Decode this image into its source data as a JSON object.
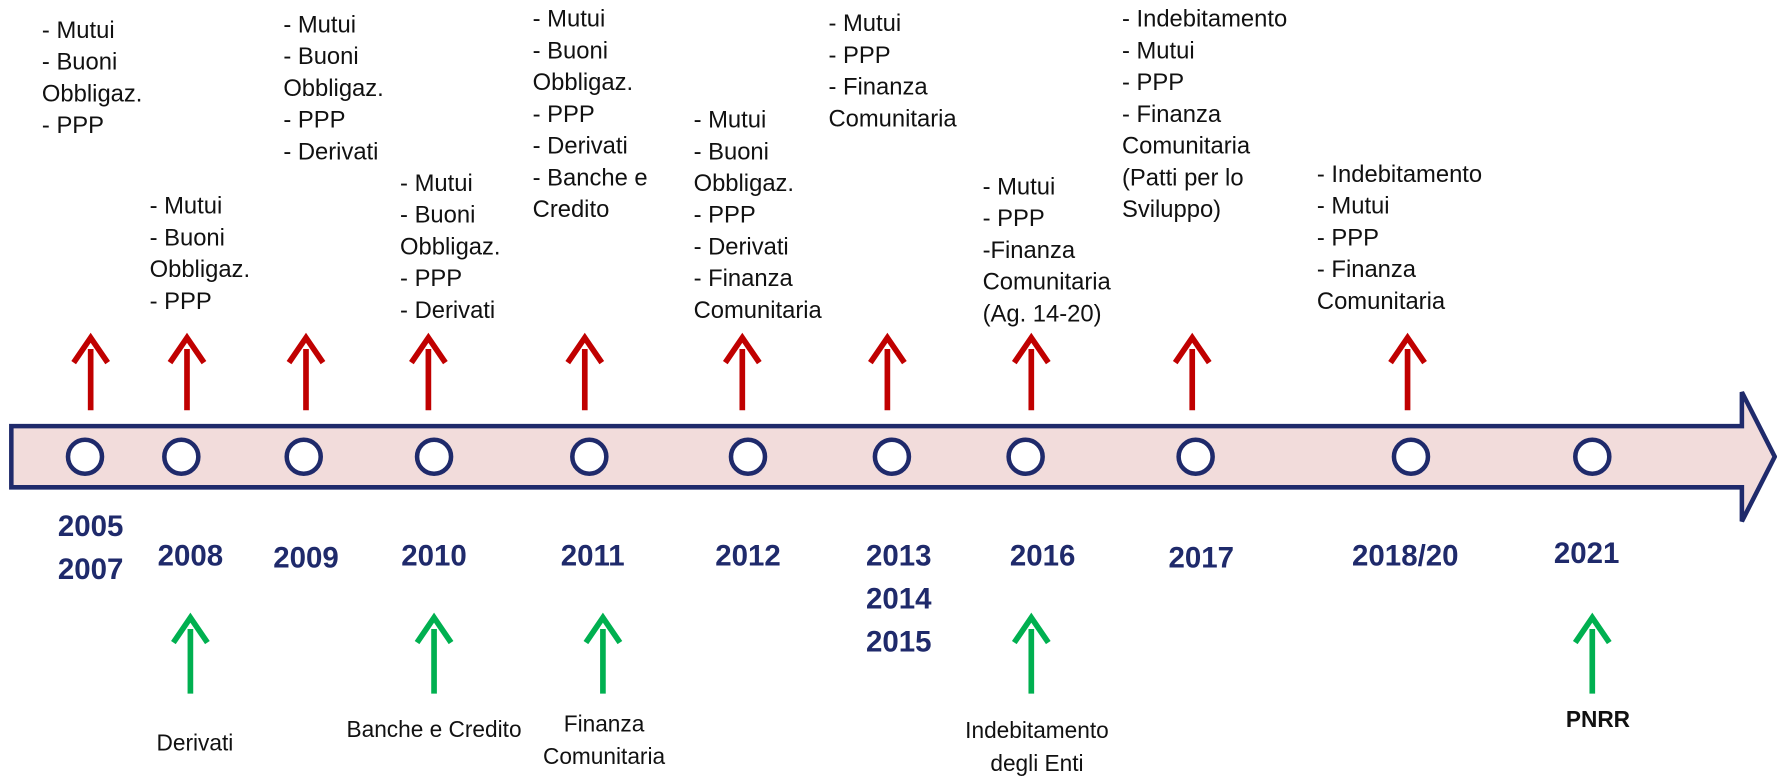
{
  "milestones": [
    {
      "year": [
        "2005",
        "2007"
      ],
      "items": [
        "- Mutui",
        "- Buoni",
        "Obbligaz.",
        "- PPP"
      ]
    },
    {
      "year": [
        "2008"
      ],
      "items": [
        "- Mutui",
        "- Buoni",
        "Obbligaz.",
        "- PPP"
      ],
      "note": [
        "Derivati"
      ]
    },
    {
      "year": [
        "2009"
      ],
      "items": [
        "- Mutui",
        "- Buoni",
        "Obbligaz.",
        "- PPP",
        "- Derivati"
      ]
    },
    {
      "year": [
        "2010"
      ],
      "items": [
        "- Mutui",
        "- Buoni",
        "Obbligaz.",
        "- PPP",
        "- Derivati"
      ],
      "note": [
        "Banche  e Credito"
      ]
    },
    {
      "year": [
        "2011"
      ],
      "items": [
        "- Mutui",
        "- Buoni",
        "Obbligaz.",
        "- PPP",
        "- Derivati",
        "- Banche e",
        "Credito"
      ],
      "note": [
        "Finanza",
        "Comunitaria"
      ]
    },
    {
      "year": [
        "2012"
      ],
      "items": [
        "- Mutui",
        "- Buoni",
        "Obbligaz.",
        "- PPP",
        "- Derivati",
        "- Finanza",
        "Comunitaria"
      ]
    },
    {
      "year": [
        "2013",
        "2014",
        "2015"
      ],
      "items": [
        "- Mutui",
        "- PPP",
        "- Finanza",
        "Comunitaria"
      ]
    },
    {
      "year": [
        "2016"
      ],
      "items": [
        "- Mutui",
        "- PPP",
        "-Finanza",
        "Comunitaria",
        "(Ag. 14-20)"
      ],
      "note": [
        "Indebitamento",
        "degli Enti"
      ]
    },
    {
      "year": [
        "2017"
      ],
      "items": [
        "- Indebitamento",
        "- Mutui",
        "- PPP",
        "- Finanza",
        "Comunitaria",
        "(Patti per lo",
        "Sviluppo)"
      ]
    },
    {
      "year": [
        "2018/20"
      ],
      "items": [
        "- Indebitamento",
        "- Mutui",
        "- PPP",
        "- Finanza",
        "Comunitaria"
      ]
    },
    {
      "year": [
        "2021"
      ],
      "note": [
        "PNRR"
      ]
    }
  ]
}
